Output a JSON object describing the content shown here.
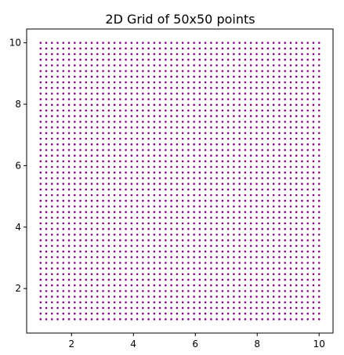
{
  "chart_data": {
    "type": "scatter",
    "title": "2D Grid of 50x50 points",
    "xlabel": "",
    "ylabel": "",
    "grid_points": 50,
    "x_range": [
      1,
      10
    ],
    "y_range": [
      1,
      10
    ],
    "xlim": [
      0.55,
      10.45
    ],
    "ylim": [
      0.55,
      10.45
    ],
    "xticks": [
      2,
      4,
      6,
      8,
      10
    ],
    "yticks": [
      2,
      4,
      6,
      8,
      10
    ],
    "xtick_labels": [
      "2",
      "4",
      "6",
      "8",
      "10"
    ],
    "ytick_labels": [
      "2",
      "4",
      "6",
      "8",
      "10"
    ],
    "marker_color": "#8b008b",
    "grid": false,
    "legend": "none"
  }
}
